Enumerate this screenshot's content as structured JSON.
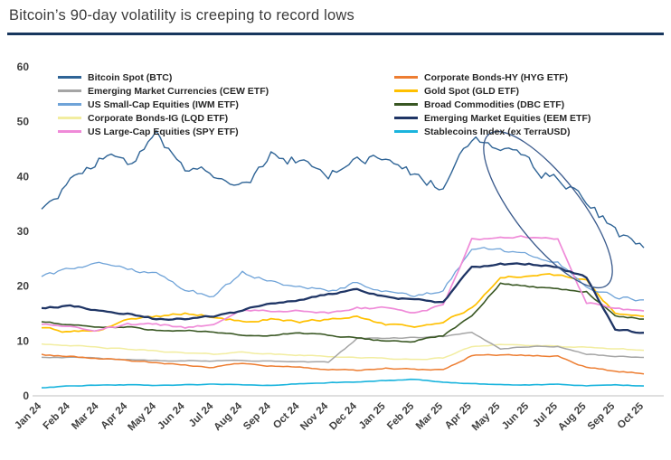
{
  "header": {
    "title": "Bitcoin’s 90-day volatility is creeping to record lows"
  },
  "chart_data": {
    "type": "line",
    "title": "Bitcoin’s 90-day volatility is creeping to record lows",
    "xlabel": "",
    "ylabel": "",
    "ylim": [
      0,
      60
    ],
    "yticks": [
      0,
      10,
      20,
      30,
      40,
      50,
      60
    ],
    "grid": false,
    "legend_position": "top-inside-two-columns",
    "x": [
      "Jan 24",
      "Feb 24",
      "Mar 24",
      "Apr 24",
      "May 24",
      "Jun 24",
      "Jul 24",
      "Aug 24",
      "Sep 24",
      "Oct 24",
      "Nov 24",
      "Dec 24",
      "Jan 25",
      "Feb 25",
      "Mar 25",
      "Apr 25",
      "May 25",
      "Jun 25",
      "Jul 25",
      "Aug 25",
      "Sep 25",
      "Oct 25"
    ],
    "series": [
      {
        "id": "btc",
        "name": "Bitcoin Spot (BTC)",
        "color": "#2f6496",
        "stroke_width": 1.4,
        "noise": 2.0,
        "values": [
          34,
          39,
          43,
          42,
          47,
          42,
          41,
          38,
          44,
          43,
          40,
          44,
          43,
          40,
          38,
          47,
          45,
          42,
          39,
          36,
          30,
          27
        ]
      },
      {
        "id": "cew",
        "name": "Emerging Market Currencies (CEW ETF)",
        "color": "#a5a5a5",
        "stroke_width": 1.5,
        "noise": 0.15,
        "values": [
          7,
          7,
          6.8,
          6.6,
          6.5,
          6.4,
          6.3,
          6.5,
          6.3,
          6.2,
          6.1,
          10.5,
          10.5,
          10.6,
          10.8,
          11.5,
          8.6,
          9,
          9,
          7.6,
          7.2,
          7
        ]
      },
      {
        "id": "iwm",
        "name": "US Small-Cap Equities (IWM ETF)",
        "color": "#6fa3d8",
        "stroke_width": 1.3,
        "noise": 0.6,
        "values": [
          22,
          23,
          24.5,
          23,
          22.5,
          19.5,
          18,
          22.5,
          21,
          20,
          19,
          20.5,
          19,
          18,
          19,
          27,
          26.5,
          25.5,
          24.5,
          20,
          18,
          17.5
        ]
      },
      {
        "id": "lqd",
        "name": "Corporate Bonds-IG (LQD ETF)",
        "color": "#f2eda0",
        "stroke_width": 1.5,
        "noise": 0.15,
        "values": [
          9.5,
          9.2,
          8.8,
          8.5,
          8.2,
          7.8,
          7.6,
          8,
          7.6,
          7.4,
          7.2,
          7,
          6.8,
          6.6,
          6.9,
          9,
          9.4,
          9.2,
          9,
          8.8,
          8.6,
          8.3
        ]
      },
      {
        "id": "spy",
        "name": "US Large-Cap Equities (SPY ETF)",
        "color": "#ef8ad8",
        "stroke_width": 1.7,
        "noise": 0.35,
        "values": [
          13,
          12.5,
          12,
          13,
          13,
          12.5,
          13,
          15.5,
          15.5,
          15.5,
          15,
          16,
          16,
          15,
          16.5,
          28.5,
          29,
          29,
          28.5,
          17,
          16,
          15.5
        ]
      },
      {
        "id": "hyg",
        "name": "Corporate Bonds-HY (HYG ETF)",
        "color": "#ed7d31",
        "stroke_width": 1.5,
        "noise": 0.2,
        "values": [
          7.5,
          7.2,
          6.8,
          6.5,
          6,
          5.5,
          5.2,
          6,
          5.5,
          5.2,
          4.8,
          4.6,
          5,
          4.8,
          4.7,
          7.4,
          7.5,
          7.3,
          7.2,
          5.2,
          4.5,
          4
        ]
      },
      {
        "id": "gld",
        "name": "Gold Spot (GLD ETF)",
        "color": "#ffc000",
        "stroke_width": 1.7,
        "noise": 0.35,
        "values": [
          12.5,
          11.5,
          12,
          14,
          14.5,
          15,
          14.5,
          13.5,
          14,
          13.5,
          14,
          14.5,
          13,
          12.5,
          13.5,
          16,
          21.5,
          22,
          22,
          21,
          15,
          14.5
        ]
      },
      {
        "id": "dbc",
        "name": "Broad Commodities (DBC ETF)",
        "color": "#395723",
        "stroke_width": 1.6,
        "noise": 0.25,
        "values": [
          13.5,
          13,
          12.5,
          12.5,
          12,
          12,
          11.5,
          11,
          11,
          11.5,
          11,
          10.5,
          10,
          10,
          11,
          14.5,
          20.5,
          20,
          19.5,
          19,
          14.5,
          14
        ]
      },
      {
        "id": "eem",
        "name": "Emerging Market Equities (EEM ETF)",
        "color": "#1f3565",
        "stroke_width": 2.3,
        "noise": 0.3,
        "values": [
          16,
          16.5,
          15.5,
          15,
          14,
          14,
          14.5,
          15.5,
          17,
          17.5,
          18.5,
          19.5,
          18,
          17.5,
          17,
          23.5,
          24,
          24,
          23.5,
          21.5,
          12,
          11.5
        ]
      },
      {
        "id": "stable",
        "name": "Stablecoins Index (ex TerraUSD)",
        "color": "#1ab4dd",
        "stroke_width": 1.6,
        "noise": 0.1,
        "values": [
          1.5,
          1.8,
          2,
          2,
          1.9,
          2,
          2.1,
          2,
          1.9,
          2.2,
          2.4,
          2.5,
          2.8,
          3,
          2.5,
          2.2,
          2,
          2,
          2.1,
          1.8,
          2,
          1.8
        ]
      }
    ],
    "annotation": {
      "shape": "ellipse",
      "meaning": "highlights declining BTC volatility from mid-2025 to Oct 25",
      "cx": 606,
      "cy": 190,
      "rx": 36,
      "ry": 106,
      "rotate": -38,
      "color": "#3a5a8c"
    }
  }
}
